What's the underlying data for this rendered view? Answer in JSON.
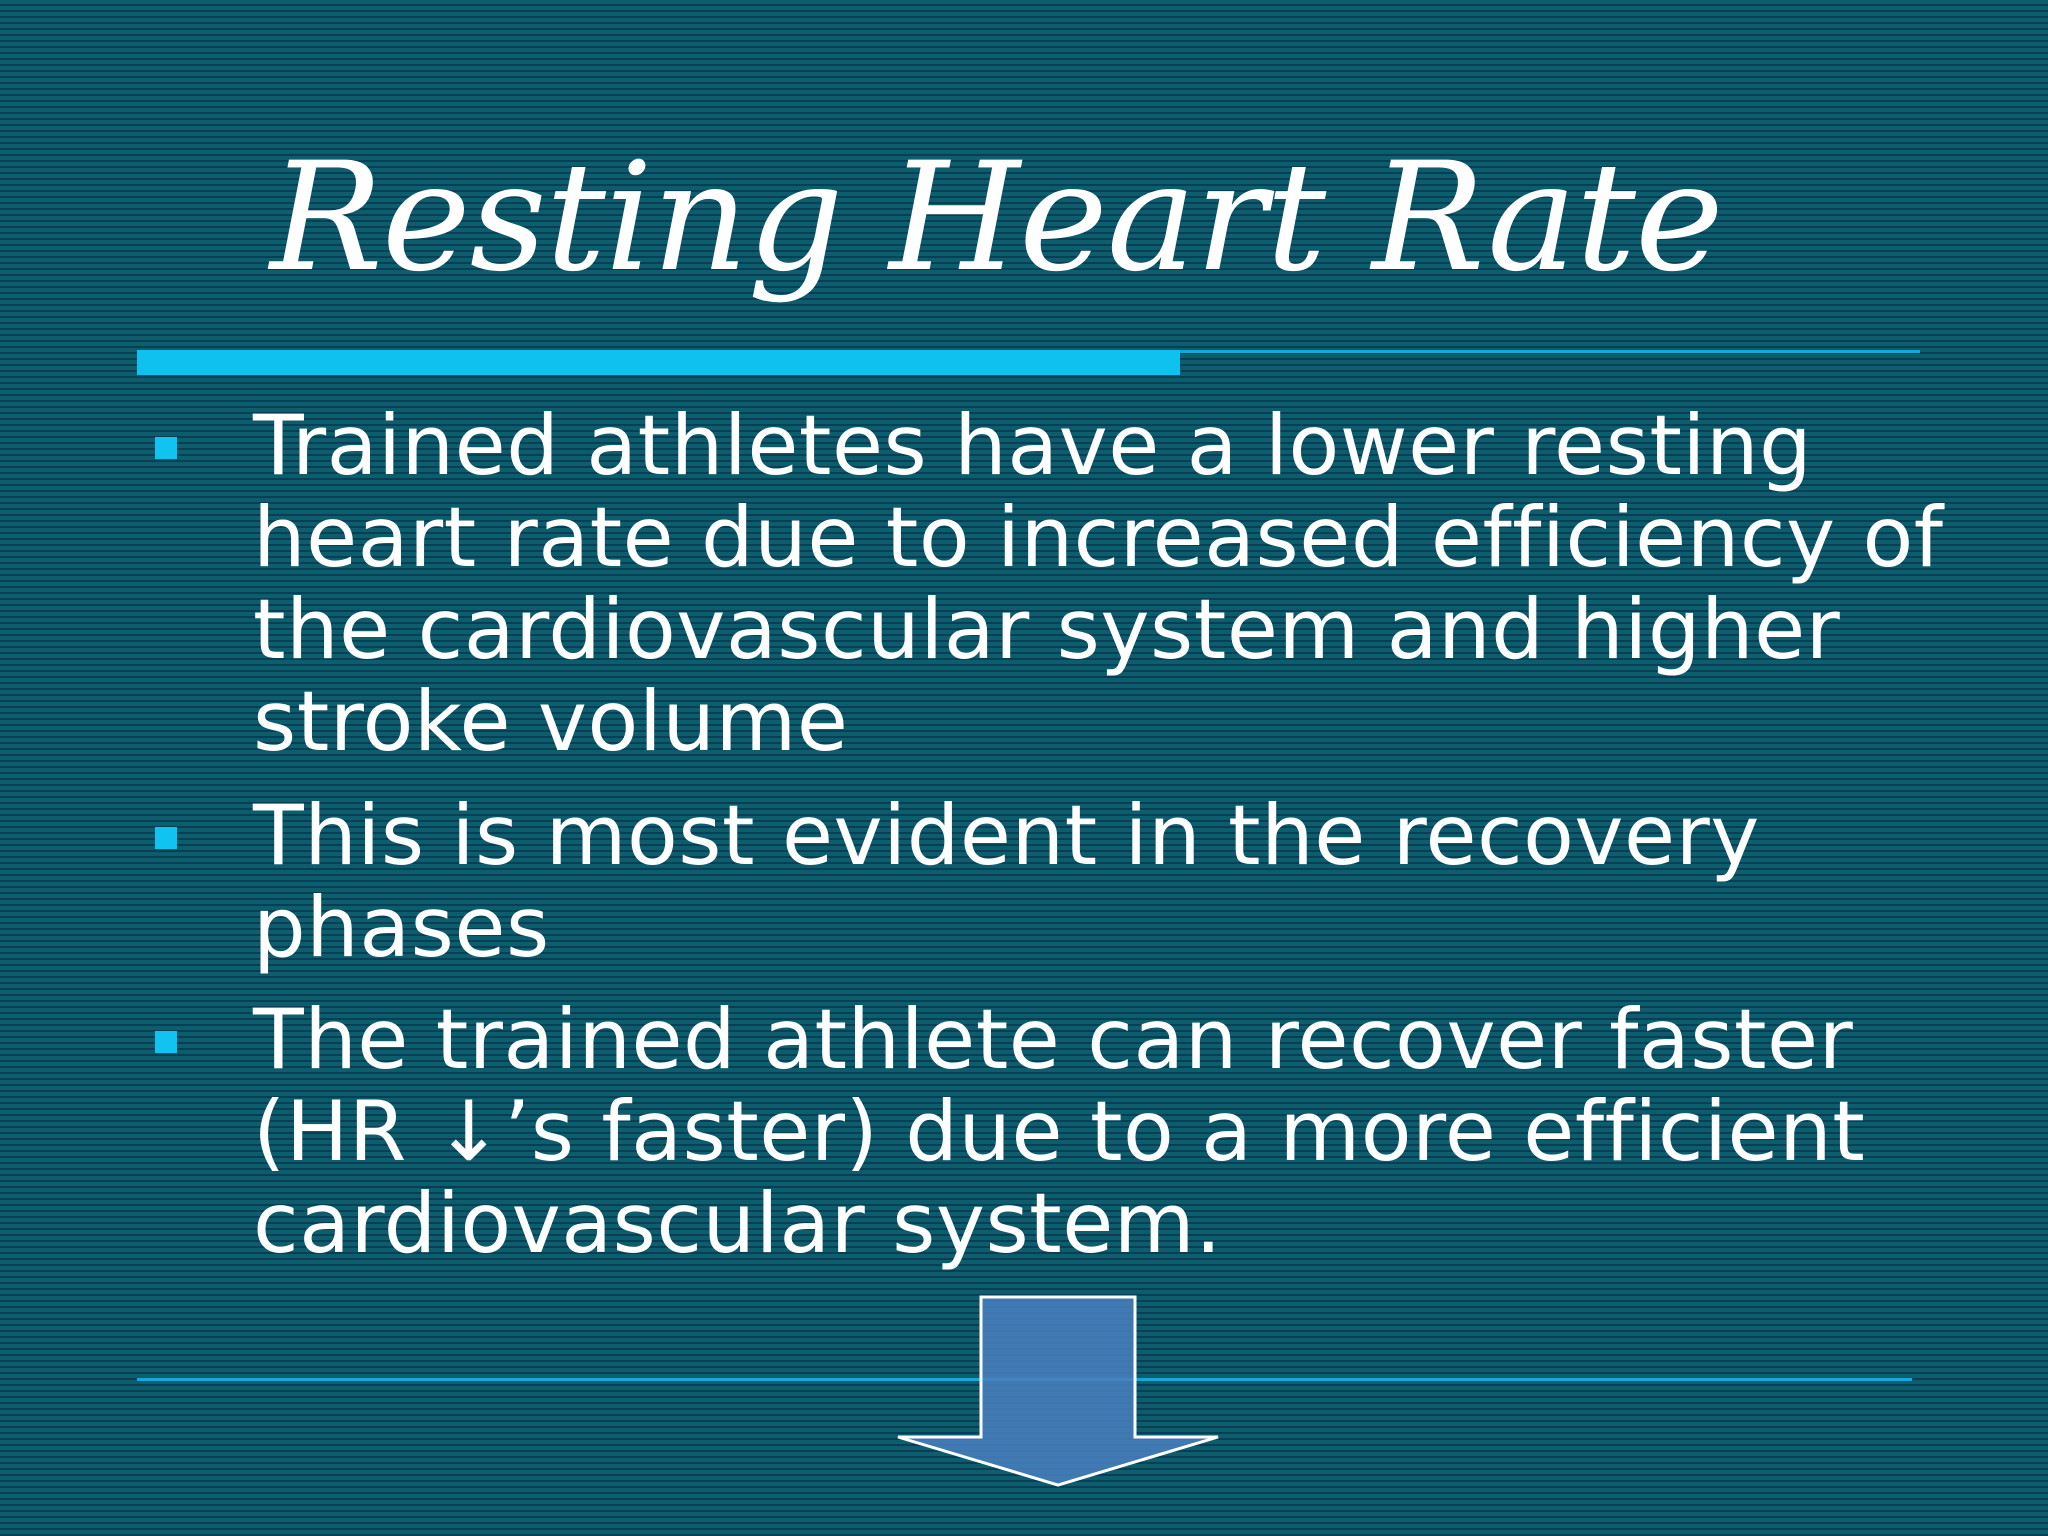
{
  "slide": {
    "title": "Resting Heart Rate",
    "bullets": [
      {
        "text": "Trained athletes have a lower resting heart rate due to increased efficiency of the cardiovascular system and higher stroke volume"
      },
      {
        "text": "This is most evident in the recovery phases"
      },
      {
        "text": "The trained athlete can recover faster (HR ↓’s faster) due to a more efficient cardiovascular system."
      }
    ]
  },
  "colors": {
    "background": "#0c5e6c",
    "stripe": "#083f57",
    "accent": "#0fc1ee",
    "arrow_fill": "#4a7fc0",
    "text": "#ffffff"
  },
  "icons": {
    "bullet": "square-bullet-icon",
    "arrow": "down-arrow-icon"
  }
}
